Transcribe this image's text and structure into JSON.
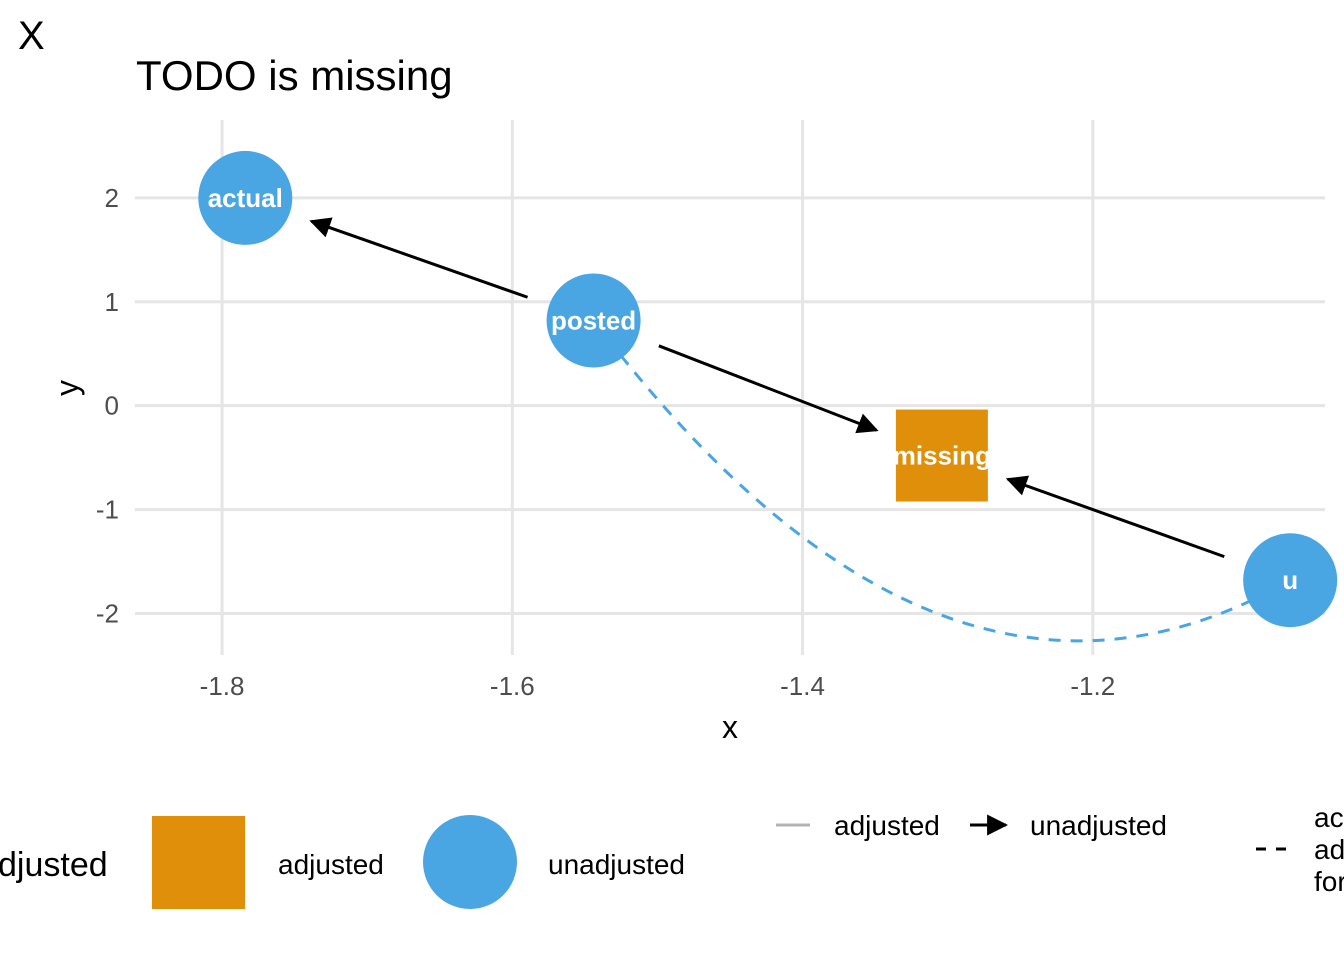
{
  "tag": "X",
  "title": "TODO is missing",
  "colors": {
    "adjusted": "#E08F0B",
    "unadjusted": "#4AA5E3",
    "grid": "#e5e5e5",
    "arrow": "#000000",
    "adjusted_line": "#b3b3b3"
  },
  "chart_data": {
    "type": "dag",
    "xlabel": "x",
    "ylabel": "y",
    "xlim": [
      -1.86,
      -1.04
    ],
    "ylim": [
      -2.4,
      2.75
    ],
    "x_ticks": [
      "-1.8",
      "-1.6",
      "-1.4",
      "-1.2"
    ],
    "x_tick_values": [
      -1.8,
      -1.6,
      -1.4,
      -1.2
    ],
    "y_ticks": [
      "2",
      "1",
      "0",
      "-1",
      "-2"
    ],
    "y_tick_values": [
      2,
      1,
      0,
      -1,
      -2
    ],
    "grid": true,
    "nodes": [
      {
        "name": "actual",
        "x": -1.784,
        "y": 2.0,
        "status": "unadjusted"
      },
      {
        "name": "posted",
        "x": -1.544,
        "y": 0.82,
        "status": "unadjusted"
      },
      {
        "name": "missing",
        "x": -1.304,
        "y": -0.48,
        "status": "adjusted"
      },
      {
        "name": "u",
        "x": -1.064,
        "y": -1.68,
        "status": "unadjusted"
      }
    ],
    "edges": [
      {
        "from": "posted",
        "to": "actual",
        "type": "directed"
      },
      {
        "from": "posted",
        "to": "missing",
        "type": "directed"
      },
      {
        "from": "u",
        "to": "missing",
        "type": "directed"
      },
      {
        "from": "posted",
        "to": "u",
        "type": "bidirected"
      }
    ],
    "legend": {
      "placement": "bottom",
      "node_title": "djusted",
      "node_items": [
        "adjusted",
        "unadjusted"
      ],
      "edge_items": [
        "adjusted",
        "unadjusted"
      ],
      "dashed_lines": [
        "ac",
        "ad",
        "for"
      ]
    }
  }
}
